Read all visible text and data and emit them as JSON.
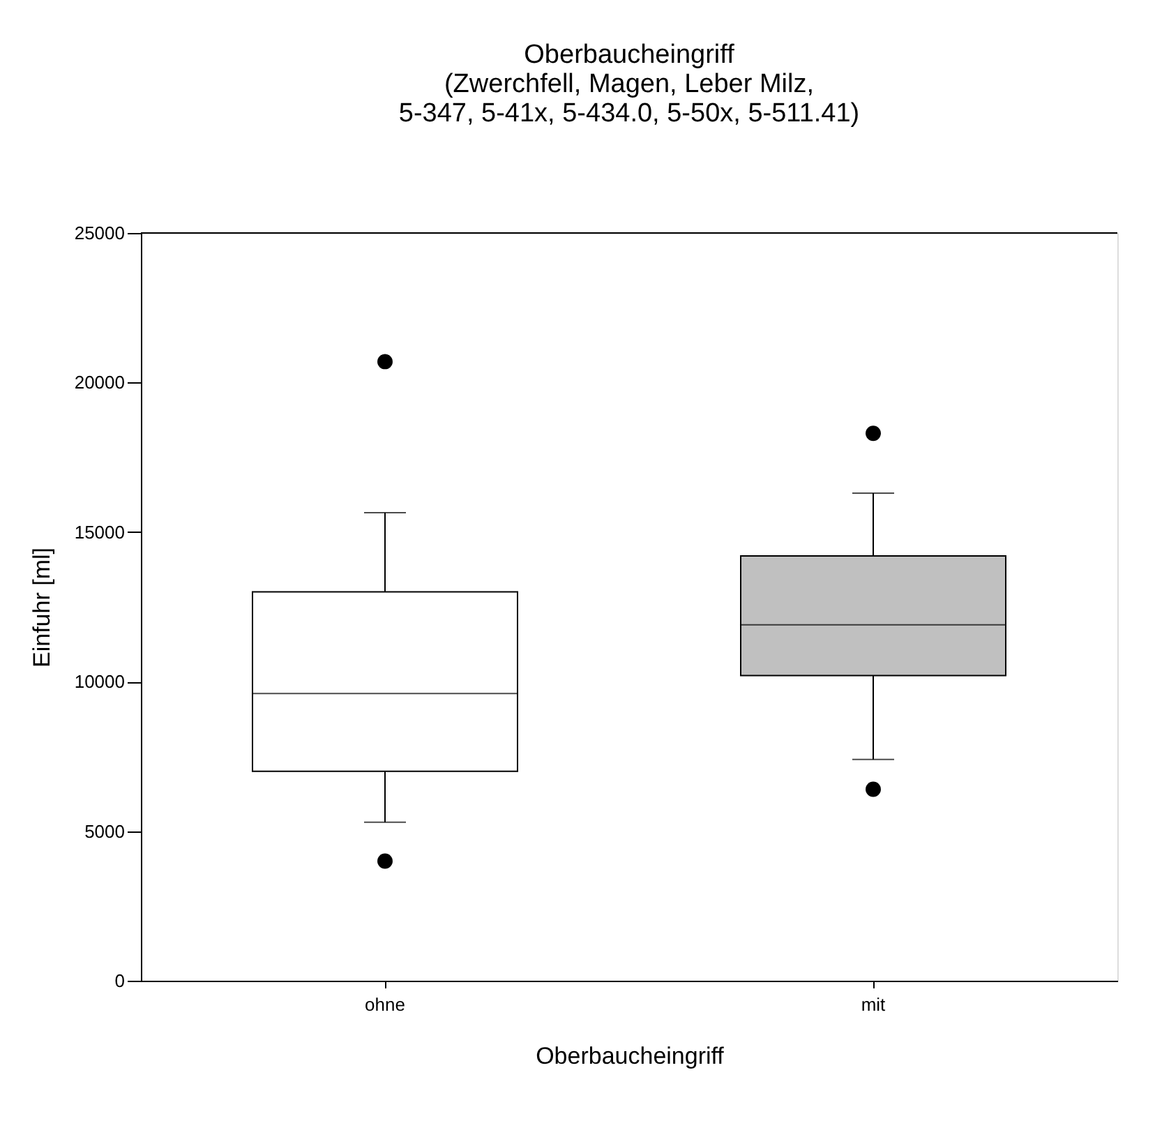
{
  "chart_data": {
    "type": "box",
    "title": [
      "Oberbaucheingriff",
      "(Zwerchfell, Magen, Leber Milz,",
      "5-347, 5-41x, 5-434.0, 5-50x, 5-511.41)"
    ],
    "xlabel": "Oberbaucheingriff",
    "ylabel": "Einfuhr [ml]",
    "categories": [
      "ohne",
      "mit"
    ],
    "colors": [
      "#ffffff",
      "#c0c0c0"
    ],
    "boxes": [
      {
        "low": 5300,
        "q1": 7000,
        "median": 9600,
        "q3": 13000,
        "high": 15650,
        "outliers": [
          4000,
          20700
        ]
      },
      {
        "low": 7400,
        "q1": 10200,
        "median": 11900,
        "q3": 14200,
        "high": 16300,
        "outliers": [
          6400,
          18300
        ]
      }
    ],
    "ylim": [
      0,
      25000
    ],
    "yticks": [
      0,
      5000,
      10000,
      15000,
      20000,
      25000
    ],
    "grid": false
  }
}
